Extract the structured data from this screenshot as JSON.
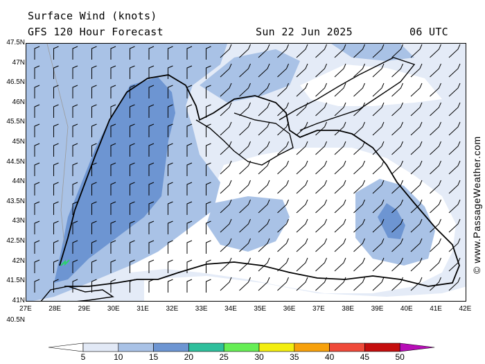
{
  "header": {
    "title": "Surface Wind (knots)",
    "subtitle": "GFS 120 Hour Forecast",
    "date": "Sun 22 Jun 2025",
    "time": "06 UTC"
  },
  "credit": "© www.PassageWeather.com",
  "axes": {
    "lat_labels": [
      "47.5N",
      "47N",
      "46.5N",
      "46N",
      "45.5N",
      "45N",
      "44.5N",
      "44N",
      "43.5N",
      "43N",
      "42.5N",
      "42N",
      "41.5N",
      "41N",
      "40.5N"
    ],
    "lon_labels": [
      "27E",
      "28E",
      "29E",
      "30E",
      "31E",
      "32E",
      "33E",
      "34E",
      "35E",
      "36E",
      "37E",
      "38E",
      "39E",
      "40E",
      "41E",
      "42E"
    ]
  },
  "legend": {
    "labels": [
      "5",
      "10",
      "15",
      "20",
      "25",
      "30",
      "35",
      "40",
      "45",
      "50"
    ],
    "colors": [
      "#ffffff",
      "#e2e9f6",
      "#a9c2e6",
      "#6d95d2",
      "#2fbf9c",
      "#66ee55",
      "#f3ee10",
      "#f7a10c",
      "#ef4a3a",
      "#c40e0e",
      "#b70db7"
    ]
  },
  "map_colors": {
    "sea_light": "#e4ebf7",
    "band_medium": "#a9c2e6",
    "band_strong": "#6d95d2",
    "white_zone": "#ffffff",
    "coast": "#000000"
  }
}
